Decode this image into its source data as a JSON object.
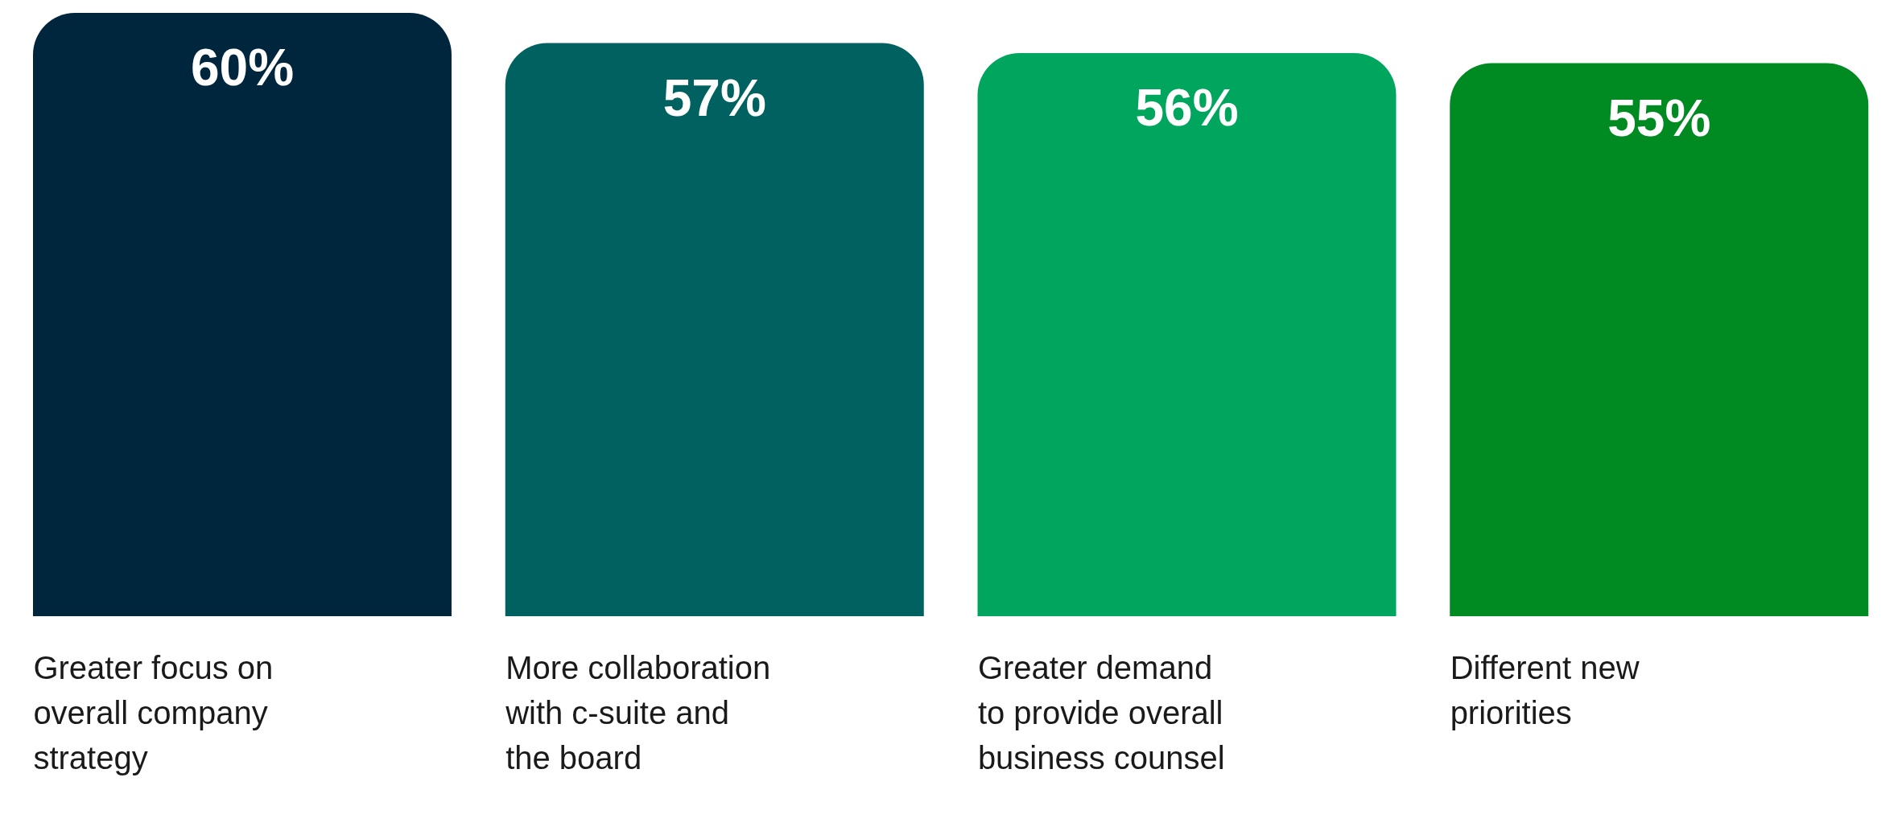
{
  "chart_data": {
    "type": "bar",
    "categories": [
      "Greater focus on\noverall company\nstrategy",
      "More collaboration\nwith c-suite and\nthe board",
      "Greater demand\nto provide overall\nbusiness counsel",
      "Different new\npriorities"
    ],
    "values": [
      60,
      57,
      56,
      55
    ],
    "colors": [
      "#00263e",
      "#006260",
      "#00a65d",
      "#008a22"
    ],
    "value_labels": [
      "60%",
      "57%",
      "56%",
      "55%"
    ],
    "grid": false,
    "legend": false,
    "tick_labels": "x"
  }
}
